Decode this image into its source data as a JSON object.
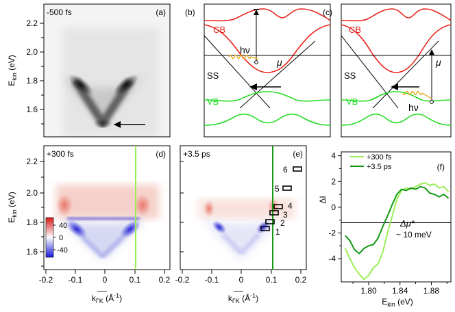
{
  "panel_a": {
    "label": "(a)",
    "delay": "-500 fs",
    "y_ticks": [
      "2.2",
      "2.0",
      "1.8",
      "1.6"
    ],
    "ylabel_main": "E",
    "ylabel_sub": "kin",
    "ylabel_unit": " (eV)"
  },
  "panel_b": {
    "label": "(b)",
    "cb": "CB",
    "ss": "SS",
    "vb": "VB",
    "hnu": "hν",
    "mu": "μ"
  },
  "panel_c": {
    "label": "(c)",
    "cb": "CB",
    "ss": "SS",
    "vb": "VB",
    "hnu": "hν",
    "mu": "μ"
  },
  "panel_d": {
    "label": "(d)",
    "delay": "+300 fs",
    "y_ticks": [
      "2.2",
      "2.0",
      "1.8",
      "1.6"
    ],
    "x_ticks": [
      "-0.2",
      "-0.1",
      "0",
      "0.1",
      "0.2"
    ],
    "colorbar_ticks": [
      "40",
      "0",
      "-40"
    ],
    "ylabel_main": "E",
    "ylabel_sub": "kin",
    "ylabel_unit": " (eV)",
    "xlabel_main": "k",
    "xlabel_sub": "ΓK",
    "xlabel_unit": " (Å",
    "xlabel_exp": "-1",
    "xlabel_close": ")"
  },
  "panel_e": {
    "label": "(e)",
    "delay": "+3.5 ps",
    "x_ticks": [
      "-0.2",
      "-0.1",
      "0",
      "0.1",
      "0.2"
    ],
    "box_labels": [
      "1",
      "2",
      "3",
      "4",
      "5",
      "6"
    ],
    "xlabel_main": "k",
    "xlabel_sub": "ΓK",
    "xlabel_unit": " (Å",
    "xlabel_exp": "-1",
    "xlabel_close": ")"
  },
  "panel_f": {
    "label": "(f)",
    "legend": [
      "+300 fs",
      "+3.5 ps"
    ],
    "annotation_delta": "Δμ*",
    "annotation_value": "~ 10 meV",
    "colors": {
      "fs300": "#99ee55",
      "ps35": "#119911"
    }
  },
  "chart_data": {
    "type": "line",
    "title": "",
    "xlabel": "Ekin (eV)",
    "ylabel": "ΔI",
    "xlim": [
      1.765,
      1.905
    ],
    "ylim": [
      -5.8,
      4.3
    ],
    "x_ticks": [
      "1.80",
      "1.84",
      "1.88"
    ],
    "y_ticks": [
      "4",
      "2",
      "0",
      "-2",
      "-4"
    ],
    "reference_line": -1.2,
    "series": [
      {
        "name": "+300 fs",
        "x": [
          1.77,
          1.776,
          1.782,
          1.788,
          1.794,
          1.8,
          1.806,
          1.812,
          1.818,
          1.824,
          1.83,
          1.836,
          1.842,
          1.848,
          1.854,
          1.86,
          1.866,
          1.872,
          1.878,
          1.884,
          1.89,
          1.896,
          1.902
        ],
        "values": [
          -3.2,
          -4.0,
          -4.7,
          -5.2,
          -5.6,
          -5.3,
          -4.7,
          -4.4,
          -3.5,
          -2.0,
          -0.7,
          0.6,
          1.3,
          1.5,
          1.4,
          1.6,
          1.8,
          1.9,
          1.7,
          1.8,
          1.5,
          1.6,
          1.2
        ]
      },
      {
        "name": "+3.5 ps",
        "x": [
          1.77,
          1.776,
          1.782,
          1.788,
          1.794,
          1.8,
          1.806,
          1.812,
          1.818,
          1.824,
          1.83,
          1.836,
          1.842,
          1.848,
          1.854,
          1.86,
          1.866,
          1.872,
          1.878,
          1.884,
          1.89,
          1.896,
          1.902
        ],
        "values": [
          -2.2,
          -2.6,
          -3.3,
          -3.6,
          -3.2,
          -3.0,
          -2.9,
          -2.4,
          -1.5,
          -0.7,
          0.2,
          1.0,
          1.4,
          1.3,
          1.5,
          1.4,
          1.6,
          1.5,
          1.1,
          1.0,
          0.8,
          1.0,
          0.7
        ]
      }
    ]
  }
}
